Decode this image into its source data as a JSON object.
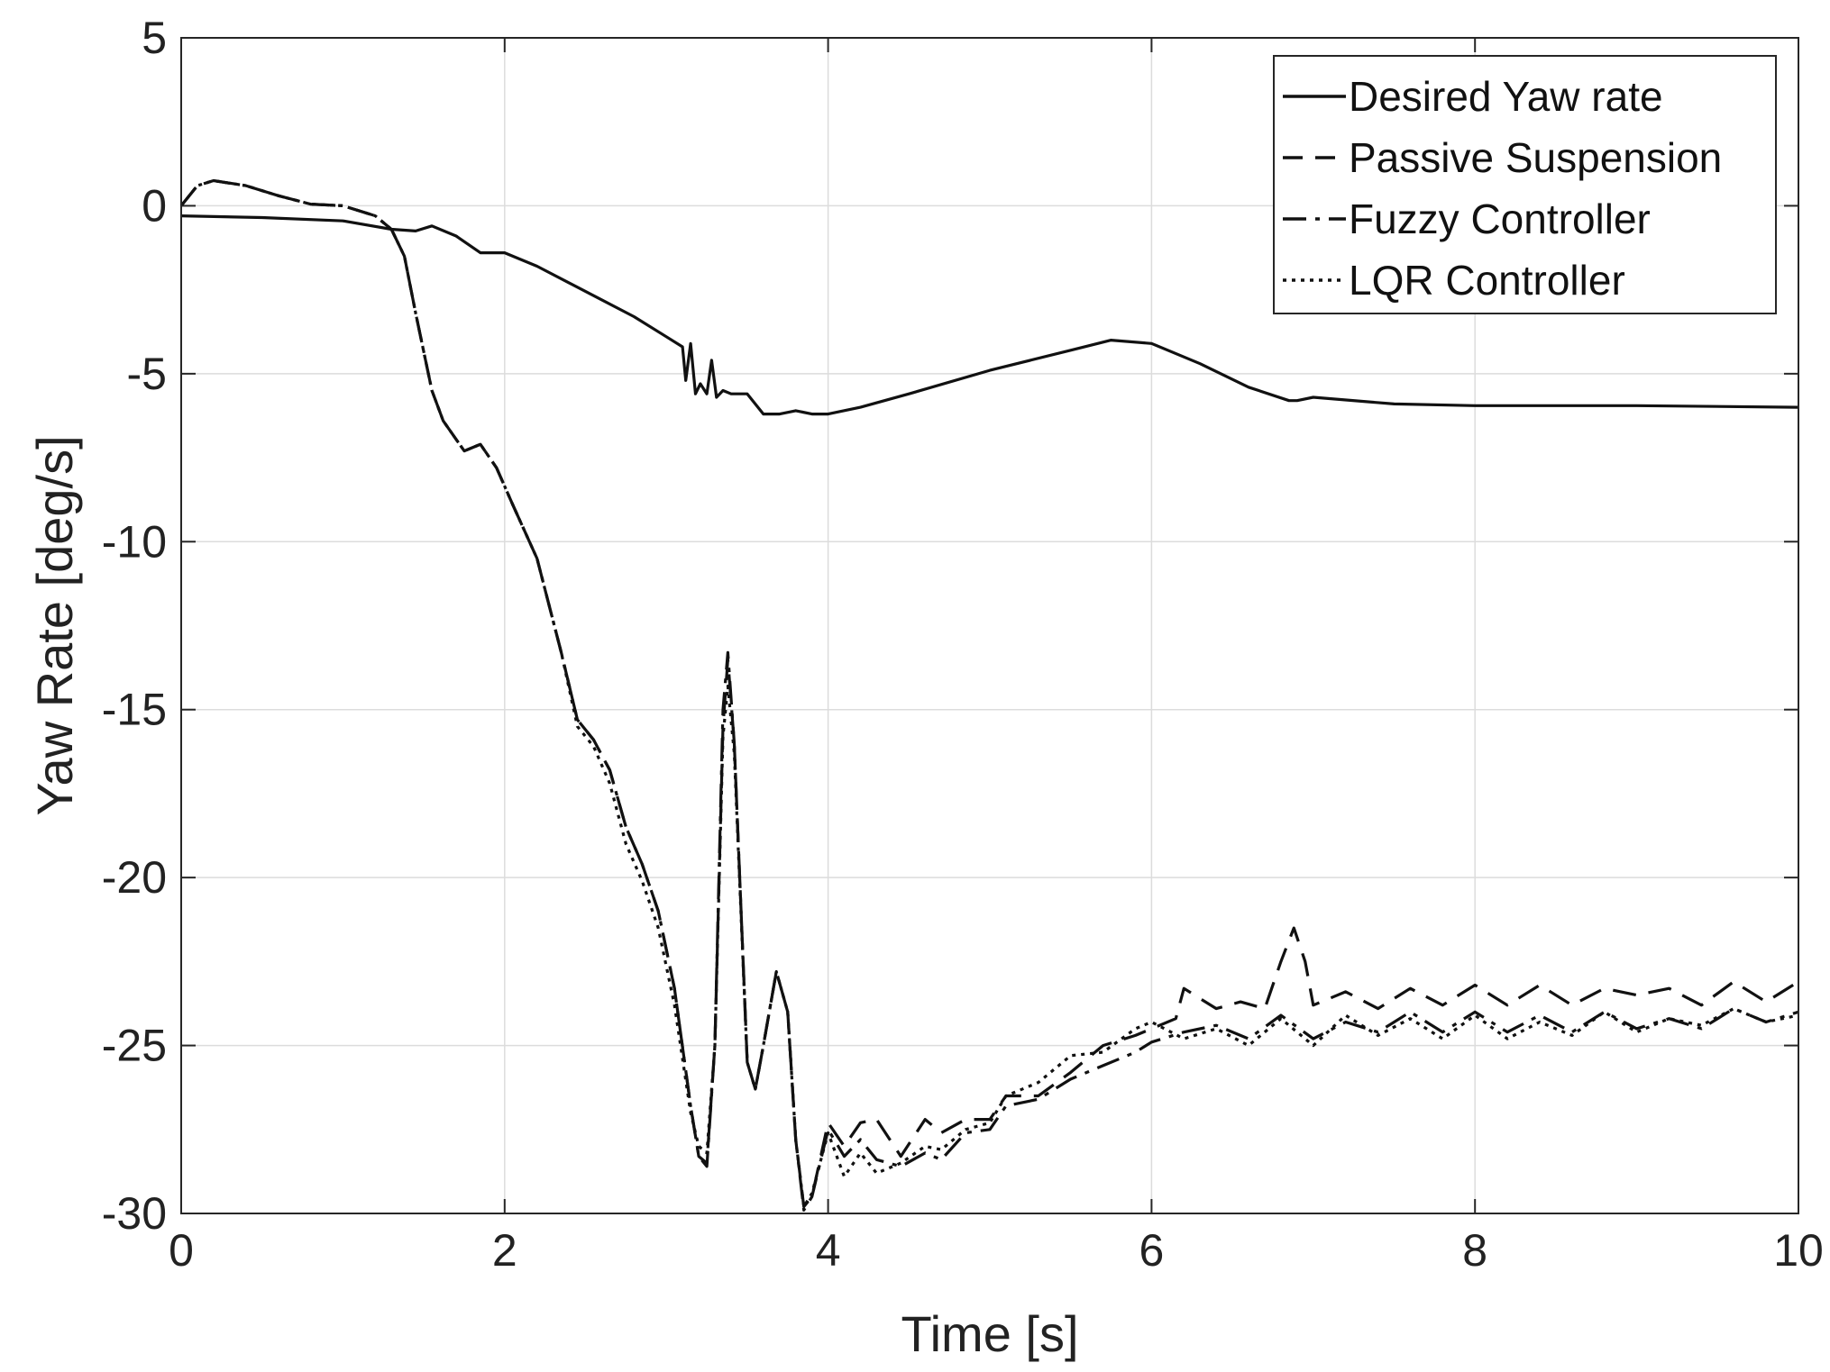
{
  "chart_data": {
    "type": "line",
    "title": "",
    "xlabel": "Time [s]",
    "ylabel": "Yaw Rate [deg/s]",
    "xlim": [
      0,
      10
    ],
    "ylim": [
      -30,
      5
    ],
    "xticks": [
      0,
      2,
      4,
      6,
      8,
      10
    ],
    "yticks": [
      5,
      0,
      -5,
      -10,
      -15,
      -20,
      -25,
      -30
    ],
    "xtick_labels": [
      "0",
      "2",
      "4",
      "6",
      "8",
      "10"
    ],
    "ytick_labels": [
      "5",
      "0",
      "-5",
      "-10",
      "-15",
      "-20",
      "-25",
      "-30"
    ],
    "grid": true,
    "legend_position": "top-right",
    "series": [
      {
        "name": "Desired Yaw rate",
        "style": "solid",
        "x": [
          0,
          0.5,
          1.0,
          1.3,
          1.45,
          1.55,
          1.7,
          1.85,
          2.0,
          2.2,
          2.4,
          2.6,
          2.8,
          3.0,
          3.1,
          3.12,
          3.15,
          3.18,
          3.21,
          3.25,
          3.28,
          3.31,
          3.35,
          3.4,
          3.5,
          3.6,
          3.7,
          3.8,
          3.9,
          4.0,
          4.2,
          4.5,
          5.0,
          5.5,
          5.75,
          6.0,
          6.3,
          6.6,
          6.85,
          6.9,
          7.0,
          7.5,
          8.0,
          9.0,
          10.0
        ],
        "y": [
          -0.3,
          -0.35,
          -0.45,
          -0.7,
          -0.75,
          -0.6,
          -0.9,
          -1.4,
          -1.4,
          -1.8,
          -2.3,
          -2.8,
          -3.3,
          -3.9,
          -4.2,
          -5.2,
          -4.1,
          -5.6,
          -5.3,
          -5.6,
          -4.6,
          -5.7,
          -5.5,
          -5.6,
          -5.6,
          -6.2,
          -6.2,
          -6.1,
          -6.2,
          -6.2,
          -6.0,
          -5.6,
          -4.9,
          -4.3,
          -4.0,
          -4.1,
          -4.7,
          -5.4,
          -5.8,
          -5.8,
          -5.7,
          -5.9,
          -5.95,
          -5.95,
          -6.0
        ]
      },
      {
        "name": "Passive Suspension",
        "style": "dashed",
        "x": [
          0,
          0.1,
          0.2,
          0.4,
          0.6,
          0.8,
          1.0,
          1.2,
          1.3,
          1.38,
          1.45,
          1.55,
          1.62,
          1.75,
          1.85,
          1.95,
          2.05,
          2.2,
          2.35,
          2.45,
          2.55,
          2.65,
          2.75,
          2.85,
          2.95,
          3.05,
          3.15,
          3.2,
          3.25,
          3.3,
          3.35,
          3.38,
          3.42,
          3.5,
          3.55,
          3.6,
          3.68,
          3.75,
          3.8,
          3.85,
          3.9,
          4.0,
          4.1,
          4.2,
          4.3,
          4.45,
          4.6,
          4.7,
          4.85,
          5.0,
          5.1,
          5.3,
          5.5,
          5.7,
          5.9,
          6.0,
          6.15,
          6.2,
          6.3,
          6.4,
          6.55,
          6.7,
          6.8,
          6.88,
          6.95,
          7.0,
          7.2,
          7.4,
          7.6,
          7.8,
          8.0,
          8.2,
          8.4,
          8.6,
          8.8,
          9.0,
          9.2,
          9.4,
          9.6,
          9.8,
          10.0
        ],
        "y": [
          0,
          0.6,
          0.75,
          0.6,
          0.3,
          0.05,
          0.0,
          -0.3,
          -0.7,
          -1.5,
          -3.2,
          -5.5,
          -6.4,
          -7.3,
          -7.1,
          -7.8,
          -8.9,
          -10.5,
          -13.3,
          -15.3,
          -15.9,
          -16.8,
          -18.5,
          -19.6,
          -21.0,
          -23.3,
          -26.8,
          -28.3,
          -28.5,
          -25.0,
          -15.5,
          -13.5,
          -16.0,
          -25.5,
          -26.3,
          -25.0,
          -22.8,
          -24.0,
          -27.8,
          -29.8,
          -29.5,
          -27.3,
          -28.0,
          -27.3,
          -27.2,
          -28.3,
          -27.2,
          -27.6,
          -27.2,
          -27.2,
          -26.5,
          -26.5,
          -25.8,
          -25.0,
          -24.7,
          -24.5,
          -24.2,
          -23.3,
          -23.6,
          -23.9,
          -23.7,
          -23.9,
          -22.5,
          -21.5,
          -22.5,
          -23.8,
          -23.4,
          -23.9,
          -23.3,
          -23.8,
          -23.2,
          -23.8,
          -23.2,
          -23.8,
          -23.3,
          -23.5,
          -23.3,
          -23.8,
          -23.1,
          -23.7,
          -23.1
        ]
      },
      {
        "name": "Fuzzy Controller",
        "style": "dashdot",
        "x": [
          0,
          0.1,
          0.2,
          0.4,
          0.6,
          0.8,
          1.0,
          1.2,
          1.3,
          1.38,
          1.45,
          1.55,
          1.62,
          1.75,
          1.85,
          1.95,
          2.05,
          2.2,
          2.35,
          2.45,
          2.55,
          2.65,
          2.75,
          2.85,
          2.95,
          3.05,
          3.15,
          3.2,
          3.25,
          3.3,
          3.35,
          3.38,
          3.42,
          3.5,
          3.55,
          3.6,
          3.68,
          3.75,
          3.8,
          3.85,
          3.9,
          4.0,
          4.1,
          4.2,
          4.3,
          4.45,
          4.6,
          4.7,
          4.85,
          5.0,
          5.1,
          5.3,
          5.5,
          5.7,
          5.9,
          6.0,
          6.2,
          6.4,
          6.6,
          6.8,
          7.0,
          7.2,
          7.4,
          7.6,
          7.8,
          8.0,
          8.2,
          8.4,
          8.6,
          8.8,
          9.0,
          9.2,
          9.4,
          9.6,
          9.8,
          10.0
        ],
        "y": [
          0,
          0.6,
          0.75,
          0.6,
          0.3,
          0.05,
          0.0,
          -0.3,
          -0.7,
          -1.5,
          -3.2,
          -5.5,
          -6.4,
          -7.3,
          -7.1,
          -7.8,
          -8.9,
          -10.5,
          -13.3,
          -15.3,
          -15.9,
          -16.8,
          -18.5,
          -19.6,
          -21.0,
          -23.3,
          -26.8,
          -28.3,
          -28.6,
          -25.0,
          -15.0,
          -13.3,
          -16.0,
          -25.5,
          -26.3,
          -25.0,
          -22.8,
          -24.0,
          -27.8,
          -29.9,
          -29.5,
          -27.5,
          -28.3,
          -27.8,
          -28.4,
          -28.6,
          -28.2,
          -28.4,
          -27.6,
          -27.5,
          -26.8,
          -26.6,
          -26.0,
          -25.6,
          -25.2,
          -24.9,
          -24.6,
          -24.4,
          -24.8,
          -24.1,
          -24.8,
          -24.3,
          -24.6,
          -24.0,
          -24.6,
          -24.0,
          -24.6,
          -24.1,
          -24.6,
          -24.0,
          -24.5,
          -24.2,
          -24.5,
          -23.9,
          -24.3,
          -24.0
        ]
      },
      {
        "name": "LQR Controller",
        "style": "dotted",
        "x": [
          0,
          0.1,
          0.2,
          0.4,
          0.6,
          0.8,
          1.0,
          1.2,
          1.3,
          1.38,
          1.45,
          1.55,
          1.62,
          1.75,
          1.85,
          1.95,
          2.05,
          2.2,
          2.35,
          2.45,
          2.55,
          2.65,
          2.75,
          2.85,
          2.95,
          3.05,
          3.15,
          3.2,
          3.25,
          3.3,
          3.35,
          3.38,
          3.42,
          3.5,
          3.55,
          3.6,
          3.68,
          3.75,
          3.8,
          3.85,
          3.9,
          4.0,
          4.1,
          4.2,
          4.3,
          4.45,
          4.6,
          4.7,
          4.85,
          5.0,
          5.1,
          5.3,
          5.5,
          5.7,
          5.9,
          6.0,
          6.2,
          6.4,
          6.6,
          6.8,
          7.0,
          7.2,
          7.4,
          7.6,
          7.8,
          8.0,
          8.2,
          8.4,
          8.6,
          8.8,
          9.0,
          9.2,
          9.4,
          9.6,
          9.8,
          10.0
        ],
        "y": [
          0,
          0.6,
          0.75,
          0.6,
          0.3,
          0.05,
          0.0,
          -0.3,
          -0.7,
          -1.5,
          -3.2,
          -5.5,
          -6.4,
          -7.3,
          -7.1,
          -7.8,
          -8.9,
          -10.5,
          -13.3,
          -15.5,
          -16.1,
          -17.2,
          -19.0,
          -20.1,
          -21.5,
          -23.8,
          -27.0,
          -28.0,
          -28.2,
          -25.0,
          -15.8,
          -14.3,
          -16.3,
          -25.5,
          -26.3,
          -25.0,
          -22.8,
          -24.0,
          -27.8,
          -29.8,
          -29.4,
          -27.6,
          -28.9,
          -28.2,
          -28.8,
          -28.5,
          -28.0,
          -28.1,
          -27.5,
          -27.3,
          -26.5,
          -26.1,
          -25.3,
          -25.2,
          -24.5,
          -24.3,
          -24.8,
          -24.5,
          -25.0,
          -24.2,
          -25.0,
          -24.1,
          -24.7,
          -24.2,
          -24.8,
          -24.1,
          -24.8,
          -24.3,
          -24.7,
          -24.0,
          -24.6,
          -24.2,
          -24.4,
          -23.9,
          -24.3,
          -24.1
        ]
      }
    ]
  }
}
